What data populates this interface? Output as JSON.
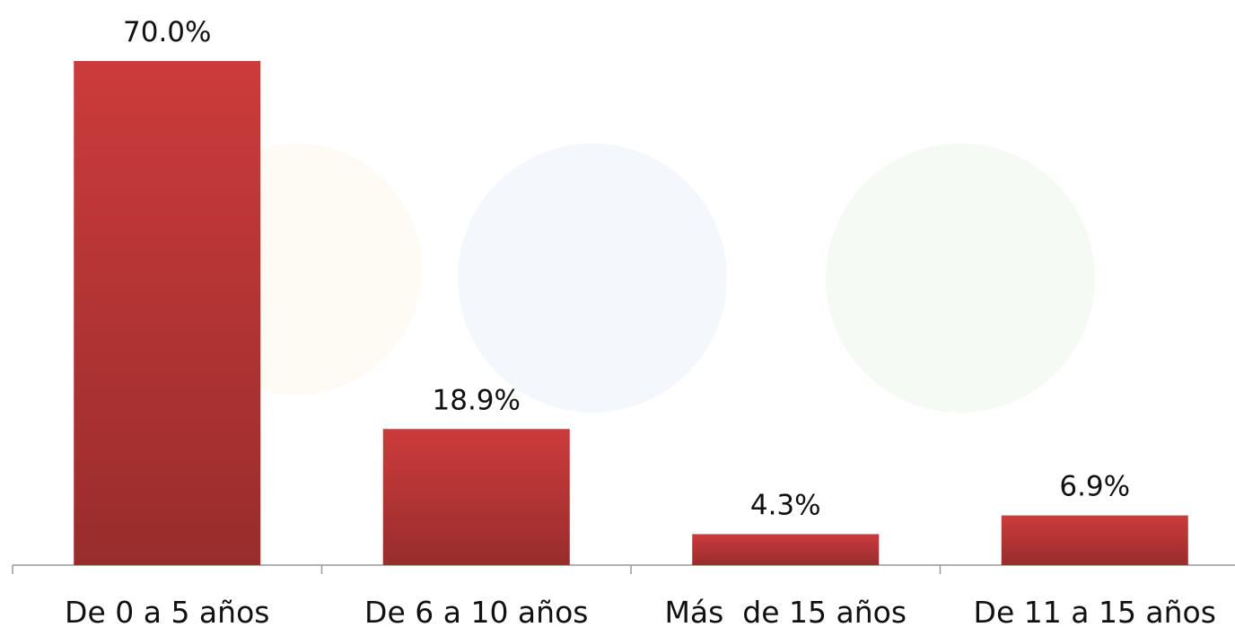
{
  "chart_data": {
    "type": "bar",
    "categories": [
      "De 0 a 5 años",
      "De 6 a 10 años",
      "Más  de 15 años",
      "De 11 a 15 años"
    ],
    "values": [
      70.0,
      18.9,
      4.3,
      6.9
    ],
    "value_labels": [
      "70.0%",
      "18.9%",
      "4.3%",
      "6.9%"
    ],
    "color": "#cc3b3b"
  }
}
